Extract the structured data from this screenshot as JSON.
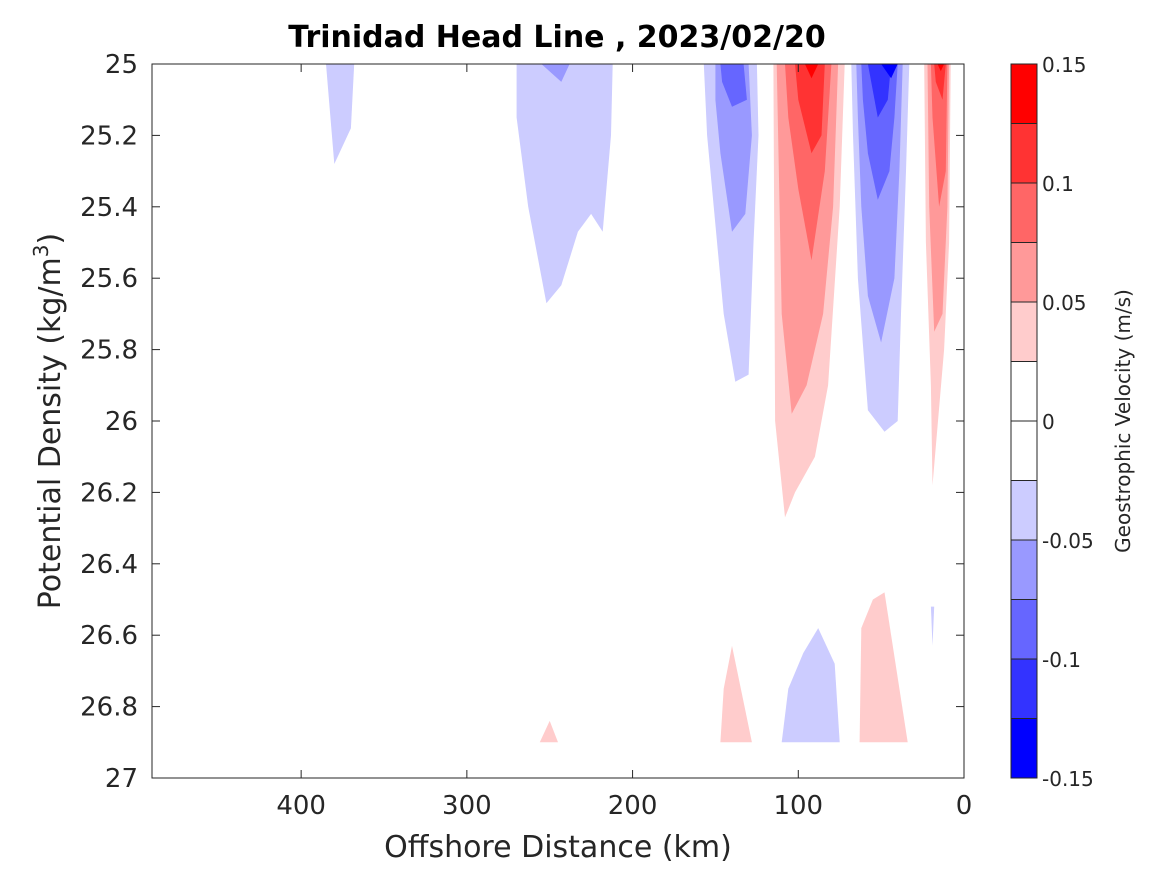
{
  "chart_data": {
    "type": "contour",
    "title": "Trinidad Head Line , 2023/02/20",
    "xlabel": "Offshore Distance (km)",
    "ylabel": "Potential Density (kg/m",
    "ylabel_superscript": "3",
    "ylabel_suffix": ")",
    "colorbar_label": "Geostrophic Velocity (m/s)",
    "xlim": [
      490,
      0
    ],
    "ylim": [
      25,
      27
    ],
    "x_reversed": true,
    "y_reversed": true,
    "x_ticks": [
      {
        "value": 400,
        "label": "400"
      },
      {
        "value": 300,
        "label": "300"
      },
      {
        "value": 200,
        "label": "200"
      },
      {
        "value": 100,
        "label": "100"
      },
      {
        "value": 0,
        "label": "0"
      }
    ],
    "y_ticks": [
      {
        "value": 25,
        "label": "25"
      },
      {
        "value": 25.2,
        "label": "25.2"
      },
      {
        "value": 25.4,
        "label": "25.4"
      },
      {
        "value": 25.6,
        "label": "25.6"
      },
      {
        "value": 25.8,
        "label": "25.8"
      },
      {
        "value": 26,
        "label": "26"
      },
      {
        "value": 26.2,
        "label": "26.2"
      },
      {
        "value": 26.4,
        "label": "26.4"
      },
      {
        "value": 26.6,
        "label": "26.6"
      },
      {
        "value": 26.8,
        "label": "26.8"
      },
      {
        "value": 27,
        "label": "27"
      }
    ],
    "colorbar": {
      "range": [
        -0.15,
        0.15
      ],
      "ticks": [
        {
          "value": 0.15,
          "label": "0.15"
        },
        {
          "value": 0.1,
          "label": "0.1"
        },
        {
          "value": 0.05,
          "label": "0.05"
        },
        {
          "value": 0,
          "label": "0"
        },
        {
          "value": -0.05,
          "label": "-0.05"
        },
        {
          "value": -0.1,
          "label": "-0.1"
        },
        {
          "value": -0.15,
          "label": "-0.15"
        }
      ],
      "bins": [
        {
          "from": 0.125,
          "to": 0.15,
          "color": "#ff0000"
        },
        {
          "from": 0.1,
          "to": 0.125,
          "color": "#ff3333"
        },
        {
          "from": 0.075,
          "to": 0.1,
          "color": "#ff6666"
        },
        {
          "from": 0.05,
          "to": 0.075,
          "color": "#ff9999"
        },
        {
          "from": 0.025,
          "to": 0.05,
          "color": "#ffcccc"
        },
        {
          "from": 0,
          "to": 0.025,
          "color": "#ffffff"
        },
        {
          "from": -0.025,
          "to": 0,
          "color": "#ffffff"
        },
        {
          "from": -0.05,
          "to": -0.025,
          "color": "#ccccff"
        },
        {
          "from": -0.075,
          "to": -0.05,
          "color": "#9999ff"
        },
        {
          "from": -0.1,
          "to": -0.075,
          "color": "#6666ff"
        },
        {
          "from": -0.125,
          "to": -0.1,
          "color": "#3333ff"
        },
        {
          "from": -0.15,
          "to": -0.125,
          "color": "#0000ff"
        }
      ]
    },
    "regions": [
      {
        "id": "neg-a",
        "color": "#ccccff",
        "points": [
          [
            385,
            25
          ],
          [
            368,
            25
          ],
          [
            370,
            25.18
          ],
          [
            380,
            25.28
          ]
        ]
      },
      {
        "id": "neg-b",
        "color": "#ccccff",
        "points": [
          [
            270,
            25
          ],
          [
            212,
            25
          ],
          [
            213,
            25.2
          ],
          [
            218,
            25.47
          ],
          [
            225,
            25.42
          ],
          [
            233,
            25.47
          ],
          [
            243,
            25.62
          ],
          [
            252,
            25.67
          ],
          [
            263,
            25.4
          ],
          [
            270,
            25.15
          ]
        ]
      },
      {
        "id": "neg-b2",
        "color": "#9999ff",
        "points": [
          [
            255,
            25
          ],
          [
            238,
            25
          ],
          [
            243,
            25.05
          ]
        ]
      },
      {
        "id": "neg-c",
        "color": "#ccccff",
        "points": [
          [
            157,
            25
          ],
          [
            125,
            25
          ],
          [
            124,
            25.2
          ],
          [
            127,
            25.5
          ],
          [
            130,
            25.87
          ],
          [
            138,
            25.89
          ],
          [
            145,
            25.7
          ],
          [
            150,
            25.45
          ],
          [
            155,
            25.2
          ]
        ]
      },
      {
        "id": "neg-c2",
        "color": "#9999ff",
        "points": [
          [
            150,
            25
          ],
          [
            130,
            25
          ],
          [
            128,
            25.2
          ],
          [
            132,
            25.42
          ],
          [
            140,
            25.47
          ],
          [
            147,
            25.25
          ],
          [
            150,
            25.1
          ]
        ]
      },
      {
        "id": "neg-c3",
        "color": "#6666ff",
        "points": [
          [
            147,
            25
          ],
          [
            133,
            25
          ],
          [
            131,
            25.1
          ],
          [
            140,
            25.12
          ],
          [
            146,
            25.05
          ]
        ]
      },
      {
        "id": "pos-d",
        "color": "#ffcccc",
        "points": [
          [
            115,
            25
          ],
          [
            72,
            25
          ],
          [
            75,
            25.4
          ],
          [
            82,
            25.9
          ],
          [
            90,
            26.1
          ],
          [
            102,
            26.2
          ],
          [
            108,
            26.27
          ],
          [
            114,
            26
          ]
        ]
      },
      {
        "id": "pos-d2",
        "color": "#ff9999",
        "points": [
          [
            113,
            25
          ],
          [
            76,
            25
          ],
          [
            79,
            25.4
          ],
          [
            85,
            25.7
          ],
          [
            95,
            25.9
          ],
          [
            104,
            25.98
          ],
          [
            110,
            25.7
          ]
        ]
      },
      {
        "id": "pos-d3",
        "color": "#ff6666",
        "points": [
          [
            108,
            25
          ],
          [
            80,
            25
          ],
          [
            84,
            25.3
          ],
          [
            92,
            25.55
          ],
          [
            100,
            25.35
          ],
          [
            106,
            25.15
          ]
        ]
      },
      {
        "id": "pos-d4",
        "color": "#ff3333",
        "points": [
          [
            102,
            25
          ],
          [
            84,
            25
          ],
          [
            86,
            25.2
          ],
          [
            92,
            25.25
          ],
          [
            100,
            25.1
          ]
        ]
      },
      {
        "id": "pos-d5",
        "color": "#ff0000",
        "points": [
          [
            96,
            25
          ],
          [
            88,
            25
          ],
          [
            92,
            25.04
          ]
        ]
      },
      {
        "id": "neg-e",
        "color": "#ccccff",
        "points": [
          [
            68,
            25
          ],
          [
            33,
            25
          ],
          [
            35,
            25.3
          ],
          [
            38,
            25.7
          ],
          [
            40,
            26
          ],
          [
            48,
            26.03
          ],
          [
            58,
            25.97
          ],
          [
            64,
            25.6
          ],
          [
            67,
            25.2
          ]
        ]
      },
      {
        "id": "neg-e2",
        "color": "#9999ff",
        "points": [
          [
            65,
            25
          ],
          [
            37,
            25
          ],
          [
            39,
            25.3
          ],
          [
            42,
            25.6
          ],
          [
            50,
            25.78
          ],
          [
            58,
            25.65
          ],
          [
            62,
            25.4
          ],
          [
            64,
            25.15
          ]
        ]
      },
      {
        "id": "neg-e3",
        "color": "#6666ff",
        "points": [
          [
            62,
            25
          ],
          [
            40,
            25
          ],
          [
            42,
            25.15
          ],
          [
            45,
            25.3
          ],
          [
            52,
            25.38
          ],
          [
            58,
            25.25
          ],
          [
            61,
            25.1
          ]
        ]
      },
      {
        "id": "neg-e4",
        "color": "#3333ff",
        "points": [
          [
            58,
            25
          ],
          [
            44,
            25
          ],
          [
            46,
            25.1
          ],
          [
            52,
            25.15
          ],
          [
            56,
            25.05
          ]
        ]
      },
      {
        "id": "neg-e5",
        "color": "#0000ff",
        "points": [
          [
            50,
            25
          ],
          [
            40,
            25
          ],
          [
            44,
            25.04
          ]
        ]
      },
      {
        "id": "pos-f",
        "color": "#ffcccc",
        "points": [
          [
            24,
            25
          ],
          [
            8,
            25
          ],
          [
            9,
            25.5
          ],
          [
            12,
            25.8
          ],
          [
            19,
            26.18
          ],
          [
            20,
            25.9
          ],
          [
            23,
            25.5
          ]
        ]
      },
      {
        "id": "pos-f2",
        "color": "#ff9999",
        "points": [
          [
            22,
            25
          ],
          [
            9,
            25
          ],
          [
            10,
            25.4
          ],
          [
            13,
            25.7
          ],
          [
            18,
            25.75
          ],
          [
            21,
            25.4
          ]
        ]
      },
      {
        "id": "pos-f3",
        "color": "#ff6666",
        "points": [
          [
            20,
            25
          ],
          [
            10,
            25
          ],
          [
            11,
            25.3
          ],
          [
            15,
            25.4
          ],
          [
            19,
            25.15
          ]
        ]
      },
      {
        "id": "pos-f4",
        "color": "#ff3333",
        "points": [
          [
            18,
            25
          ],
          [
            11,
            25
          ],
          [
            13,
            25.1
          ],
          [
            17,
            25.05
          ]
        ]
      },
      {
        "id": "pos-f5",
        "color": "#ff0000",
        "points": [
          [
            16,
            25
          ],
          [
            12,
            25
          ],
          [
            14,
            25.02
          ]
        ]
      },
      {
        "id": "neg-g",
        "color": "#ccccff",
        "points": [
          [
            20,
            26.52
          ],
          [
            18,
            26.52
          ],
          [
            19,
            26.63
          ]
        ]
      },
      {
        "id": "pos-h",
        "color": "#ffcccc",
        "points": [
          [
            250,
            26.84
          ],
          [
            245,
            26.9
          ],
          [
            256,
            26.9
          ]
        ]
      },
      {
        "id": "pos-i",
        "color": "#ffcccc",
        "points": [
          [
            140,
            26.63
          ],
          [
            128,
            26.9
          ],
          [
            147,
            26.9
          ],
          [
            145,
            26.75
          ]
        ]
      },
      {
        "id": "neg-j",
        "color": "#ccccff",
        "points": [
          [
            88,
            26.58
          ],
          [
            78,
            26.68
          ],
          [
            75,
            26.9
          ],
          [
            110,
            26.9
          ],
          [
            106,
            26.75
          ],
          [
            97,
            26.65
          ]
        ]
      },
      {
        "id": "pos-k",
        "color": "#ffcccc",
        "points": [
          [
            48,
            26.48
          ],
          [
            34,
            26.9
          ],
          [
            63,
            26.9
          ],
          [
            62,
            26.58
          ],
          [
            55,
            26.5
          ]
        ]
      }
    ]
  }
}
